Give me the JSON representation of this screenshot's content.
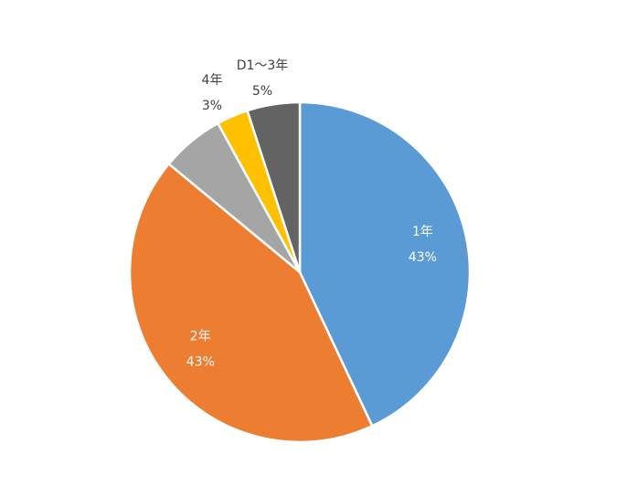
{
  "chart_data": {
    "type": "pie",
    "categories": [
      "1年",
      "2年",
      null,
      "4年",
      "D1〜3年"
    ],
    "values": [
      43,
      43,
      6,
      3,
      5
    ],
    "value_labels": [
      "43%",
      "43%",
      null,
      "3%",
      "5%"
    ],
    "colors": [
      "#5b9bd5",
      "#ed7d31",
      "#a5a5a5",
      "#ffc000",
      "#636363"
    ]
  }
}
